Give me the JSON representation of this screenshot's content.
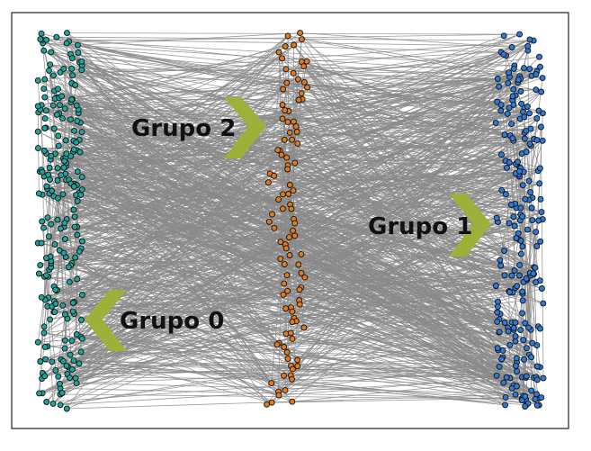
{
  "diagram": {
    "groups": [
      {
        "id": 0,
        "label": "Grupo 0",
        "node_color": "#1fa39a"
      },
      {
        "id": 1,
        "label": "Grupo 1",
        "node_color": "#2f7ad6"
      },
      {
        "id": 2,
        "label": "Grupo 2",
        "node_color": "#e07a1f"
      }
    ],
    "edge_color": "#8a8a8a",
    "node_outline_color": "#111111",
    "arrow_color": "#9db13a",
    "frame_color": "#222222"
  }
}
